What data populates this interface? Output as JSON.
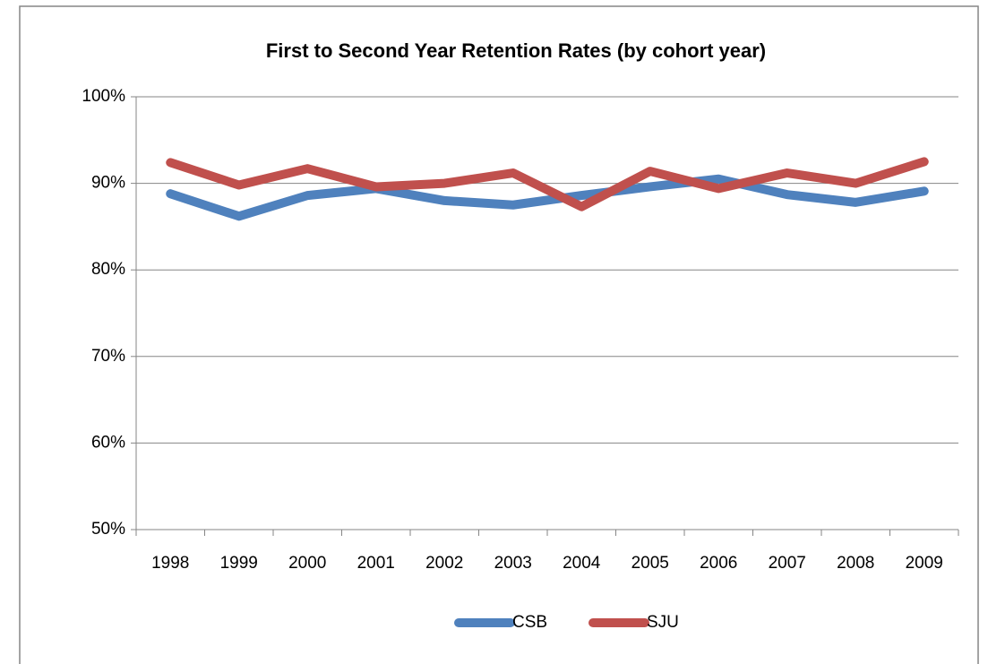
{
  "chart_data": {
    "type": "line",
    "title": "First to Second Year Retention Rates (by cohort year)",
    "categories": [
      "1998",
      "1999",
      "2000",
      "2001",
      "2002",
      "2003",
      "2004",
      "2005",
      "2006",
      "2007",
      "2008",
      "2009"
    ],
    "series": [
      {
        "name": "CSB",
        "color": "#4f81bd",
        "values": [
          88.8,
          86.2,
          88.6,
          89.4,
          88.0,
          87.5,
          88.6,
          89.6,
          90.5,
          88.7,
          87.8,
          89.1
        ]
      },
      {
        "name": "SJU",
        "color": "#c0504d",
        "values": [
          92.4,
          89.8,
          91.7,
          89.6,
          90.0,
          91.2,
          87.3,
          91.4,
          89.4,
          91.2,
          90.0,
          92.5
        ]
      }
    ],
    "ylim": [
      50,
      100
    ],
    "yticks": [
      {
        "value": 50,
        "label": "50%"
      },
      {
        "value": 60,
        "label": "60%"
      },
      {
        "value": 70,
        "label": "70%"
      },
      {
        "value": 80,
        "label": "80%"
      },
      {
        "value": 90,
        "label": "90%"
      },
      {
        "value": 100,
        "label": "100%"
      }
    ],
    "grid": true,
    "legend": "bottom"
  }
}
